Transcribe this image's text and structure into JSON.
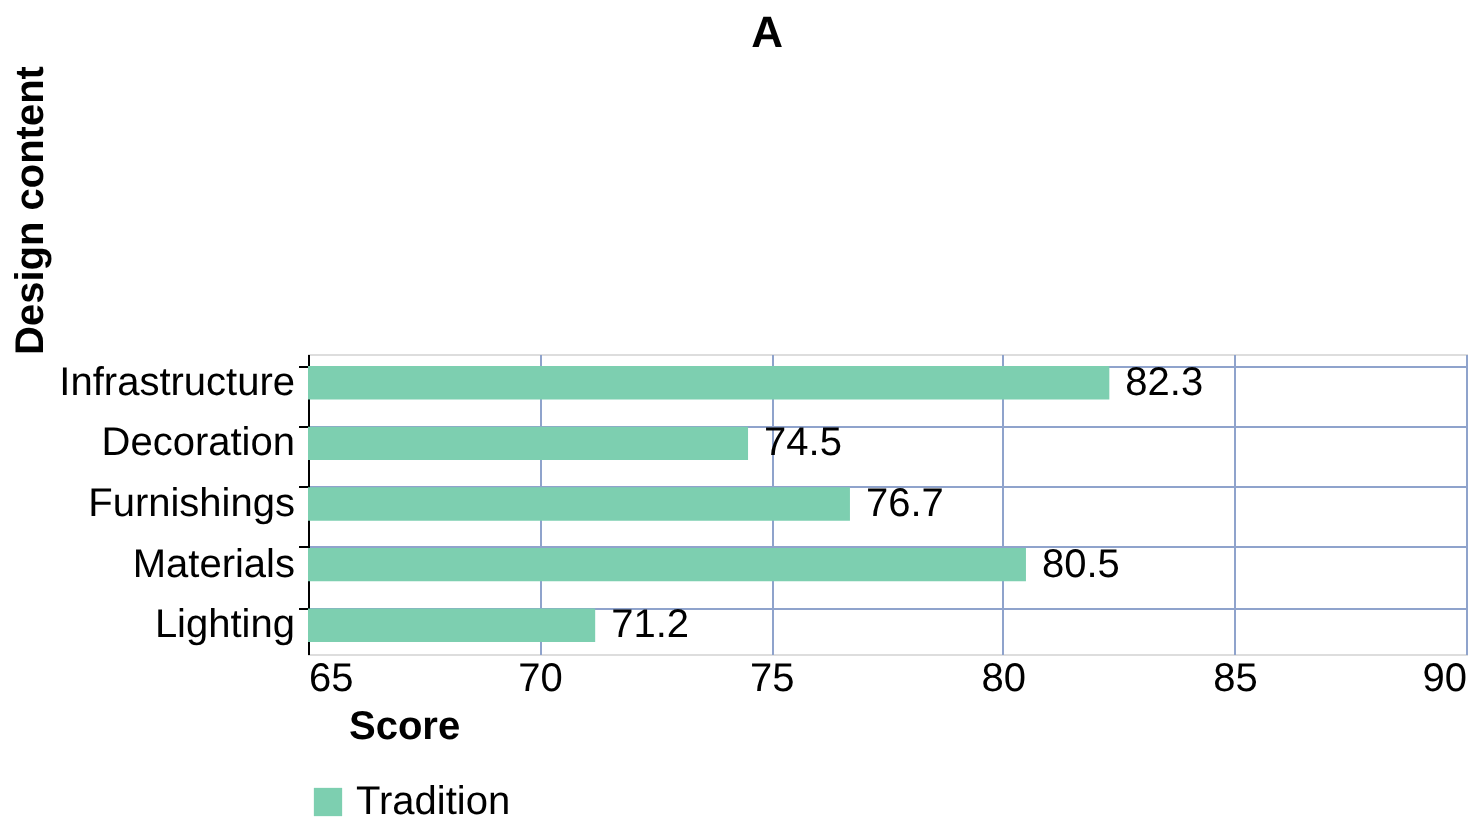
{
  "chart_data": {
    "type": "bar",
    "orientation": "horizontal",
    "title": "A",
    "xlabel": "Score",
    "ylabel": "Design content",
    "categories": [
      "Infrastructure",
      "Decoration",
      "Furnishings",
      "Materials",
      "Lighting"
    ],
    "series": [
      {
        "name": "Tradition",
        "color": "#7dcfb0",
        "values": [
          82.3,
          74.5,
          76.7,
          80.5,
          71.2
        ]
      }
    ],
    "xlim": [
      65,
      90
    ],
    "xticks": [
      65,
      70,
      75,
      80,
      85,
      90
    ],
    "grid": true,
    "legend": "bottom",
    "data_labels": true
  }
}
